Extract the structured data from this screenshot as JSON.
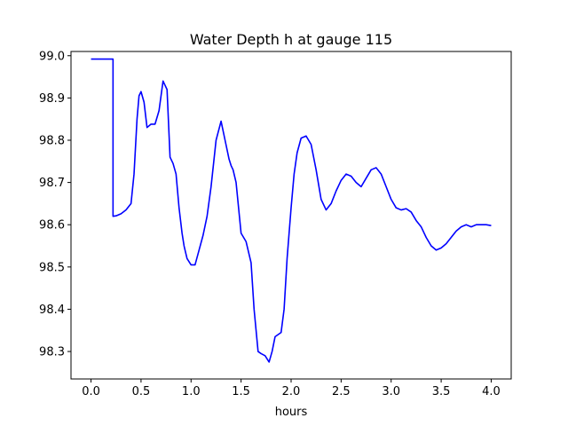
{
  "chart_data": {
    "type": "line",
    "title": "Water Depth h at gauge 115",
    "xlabel": "hours",
    "ylabel": "",
    "xlim": [
      -0.2,
      4.2
    ],
    "ylim": [
      98.235,
      99.01
    ],
    "xticks": [
      0.0,
      0.5,
      1.0,
      1.5,
      2.0,
      2.5,
      3.0,
      3.5,
      4.0
    ],
    "xtick_labels": [
      "0.0",
      "0.5",
      "1.0",
      "1.5",
      "2.0",
      "2.5",
      "3.0",
      "3.5",
      "4.0"
    ],
    "yticks": [
      98.3,
      98.4,
      98.5,
      98.6,
      98.7,
      98.8,
      98.9,
      99.0
    ],
    "ytick_labels": [
      "98.3",
      "98.4",
      "98.5",
      "98.6",
      "98.7",
      "98.8",
      "98.9",
      "99.0"
    ],
    "grid": false,
    "series": [
      {
        "color": "#0000ff",
        "x": [
          0.0,
          0.22,
          0.22,
          0.25,
          0.3,
          0.35,
          0.4,
          0.43,
          0.46,
          0.48,
          0.5,
          0.53,
          0.56,
          0.6,
          0.64,
          0.68,
          0.72,
          0.76,
          0.79,
          0.82,
          0.85,
          0.88,
          0.91,
          0.93,
          0.96,
          1.0,
          1.04,
          1.08,
          1.12,
          1.16,
          1.2,
          1.25,
          1.3,
          1.34,
          1.38,
          1.4,
          1.42,
          1.45,
          1.5,
          1.55,
          1.6,
          1.63,
          1.67,
          1.7,
          1.74,
          1.78,
          1.81,
          1.84,
          1.87,
          1.9,
          1.93,
          1.96,
          2.0,
          2.03,
          2.06,
          2.1,
          2.15,
          2.2,
          2.25,
          2.3,
          2.35,
          2.4,
          2.45,
          2.5,
          2.55,
          2.6,
          2.65,
          2.7,
          2.75,
          2.8,
          2.85,
          2.9,
          2.95,
          3.0,
          3.05,
          3.1,
          3.15,
          3.2,
          3.25,
          3.3,
          3.35,
          3.4,
          3.45,
          3.5,
          3.55,
          3.6,
          3.65,
          3.7,
          3.75,
          3.8,
          3.85,
          3.9,
          3.95,
          4.0
        ],
        "y": [
          98.992,
          98.992,
          98.62,
          98.621,
          98.626,
          98.635,
          98.65,
          98.72,
          98.85,
          98.905,
          98.915,
          98.89,
          98.83,
          98.838,
          98.838,
          98.87,
          98.94,
          98.92,
          98.76,
          98.745,
          98.72,
          98.64,
          98.58,
          98.55,
          98.52,
          98.505,
          98.505,
          98.54,
          98.575,
          98.62,
          98.69,
          98.8,
          98.845,
          98.8,
          98.755,
          98.74,
          98.73,
          98.7,
          98.58,
          98.56,
          98.51,
          98.4,
          98.3,
          98.295,
          98.29,
          98.275,
          98.3,
          98.335,
          98.34,
          98.345,
          98.4,
          98.52,
          98.64,
          98.72,
          98.77,
          98.805,
          98.81,
          98.79,
          98.73,
          98.66,
          98.635,
          98.65,
          98.68,
          98.705,
          98.72,
          98.715,
          98.7,
          98.69,
          98.71,
          98.73,
          98.735,
          98.72,
          98.69,
          98.66,
          98.64,
          98.635,
          98.638,
          98.63,
          98.61,
          98.595,
          98.57,
          98.55,
          98.54,
          98.545,
          98.555,
          98.57,
          98.585,
          98.595,
          98.6,
          98.595,
          98.6,
          98.6,
          98.6,
          98.598
        ]
      }
    ]
  }
}
